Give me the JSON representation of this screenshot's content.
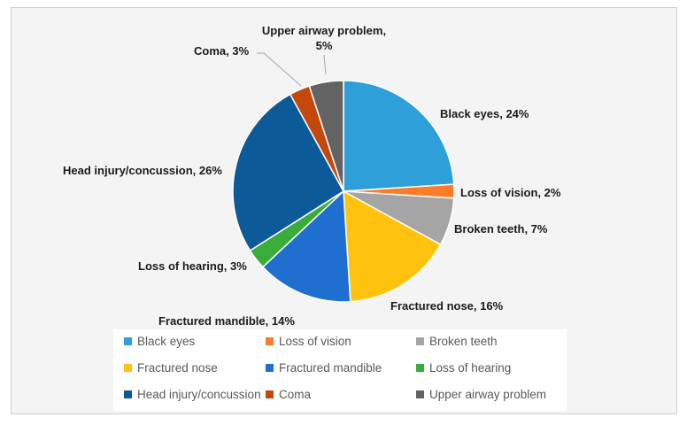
{
  "chart_data": {
    "type": "pie",
    "title": "",
    "slices": [
      {
        "label": "Black eyes",
        "value": 24,
        "data_label": "Black eyes, 24%",
        "color": "#2e9fd9"
      },
      {
        "label": "Loss of vision",
        "value": 2,
        "data_label": "Loss of vision, 2%",
        "color": "#fb7d2a"
      },
      {
        "label": "Broken teeth",
        "value": 7,
        "data_label": "Broken teeth, 7%",
        "color": "#a5a5a5"
      },
      {
        "label": "Fractured nose",
        "value": 16,
        "data_label": "Fractured nose, 16%",
        "color": "#ffc20e"
      },
      {
        "label": "Fractured mandible",
        "value": 14,
        "data_label": "Fractured mandible, 14%",
        "color": "#1f6fd0"
      },
      {
        "label": "Loss of hearing",
        "value": 3,
        "data_label": "Loss of hearing, 3%",
        "color": "#3aac3a"
      },
      {
        "label": "Head injury/concussion",
        "value": 26,
        "data_label": "Head injury/concussion, 26%",
        "color": "#0d5a99"
      },
      {
        "label": "Coma",
        "value": 3,
        "data_label": "Coma, 3%",
        "color": "#c4480c"
      },
      {
        "label": "Upper airway problem",
        "value": 5,
        "data_label": "Upper airway problem, 5%",
        "color": "#636363"
      }
    ],
    "legend": {
      "position": "bottom"
    }
  }
}
